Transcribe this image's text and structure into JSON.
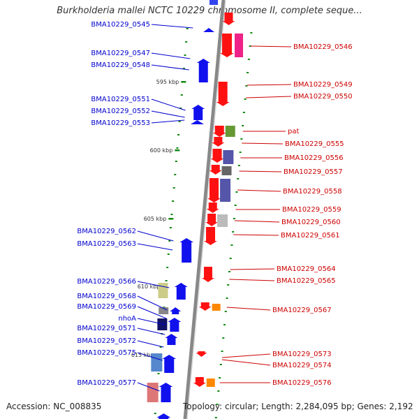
{
  "title": "Burkholderia mallei NCTC 10229 chromosome II, complete seque...",
  "accession": "Accession: NC_008835",
  "summary": "Topology: circular; Length: 2,284,095 bp; Genes: 2,192",
  "colors": {
    "backbone": "#888888",
    "left_label": "#0000cc",
    "right_label": "#cc0000",
    "tick": "#118811"
  },
  "scale_ticks": [
    "595 kbp",
    "600 kbp",
    "605 kbp",
    "610 kbp",
    "615 kbp"
  ],
  "left_genes": [
    "BMA10229_0545",
    "BMA10229_0547",
    "BMA10229_0548",
    "BMA10229_0551",
    "BMA10229_0552",
    "BMA10229_0553",
    "BMA10229_0562",
    "BMA10229_0563",
    "BMA10229_0566",
    "BMA10229_0568",
    "BMA10229_0569",
    "nhoA",
    "BMA10229_0571",
    "BMA10229_0572",
    "BMA10229_0575",
    "BMA10229_0577"
  ],
  "right_genes": [
    "BMA10229_0546",
    "BMA10229_0549",
    "BMA10229_0550",
    "pat",
    "BMA10229_0555",
    "BMA10229_0556",
    "BMA10229_0557",
    "BMA10229_0558",
    "BMA10229_0559",
    "BMA10229_0560",
    "BMA10229_0561",
    "BMA10229_0564",
    "BMA10229_0565",
    "BMA10229_0567",
    "BMA10229_0573",
    "BMA10229_0574",
    "BMA10229_0576"
  ]
}
